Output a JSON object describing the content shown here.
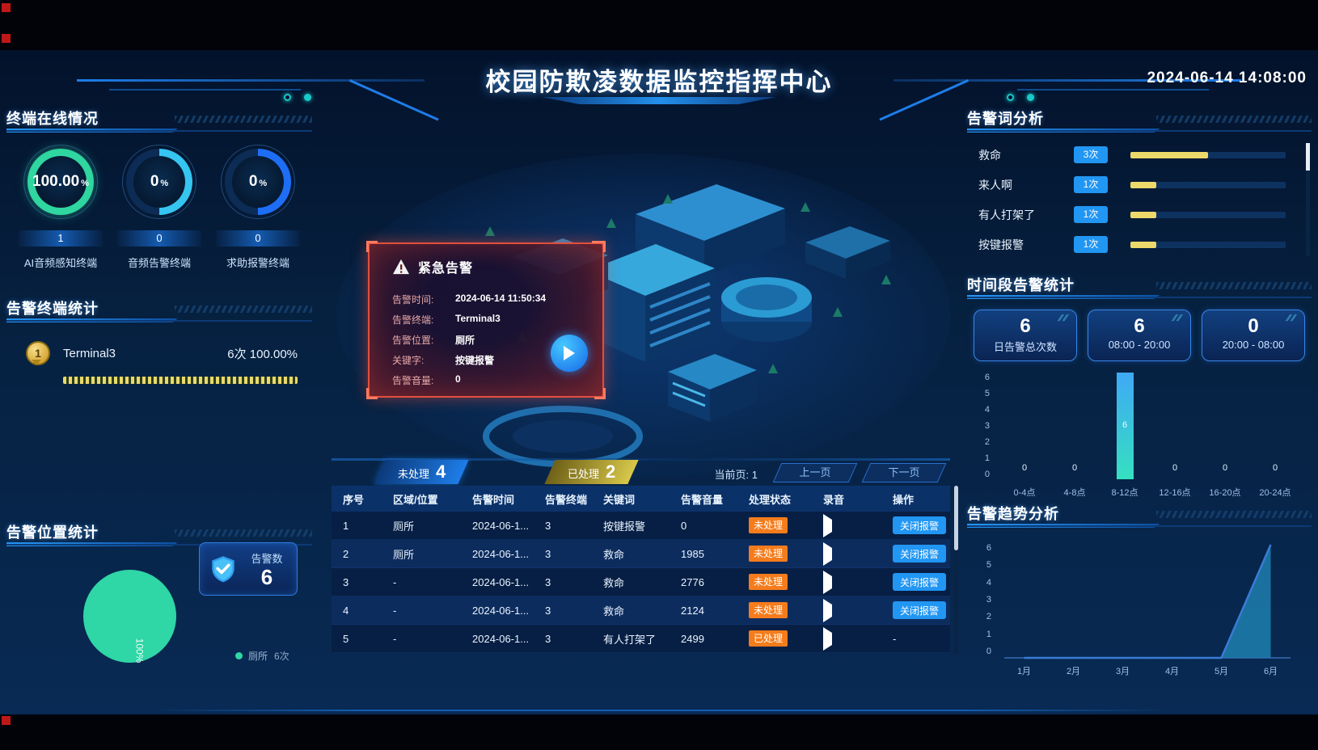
{
  "meta": {
    "title": "校园防欺凌数据监控指挥中心",
    "datetime": "2024-06-14 14:08:00"
  },
  "colors": {
    "accent_blue": "#1e7de8",
    "teal": "#2fd6a6",
    "yellow": "#ecd96a",
    "orange_badge": "#f57c1c",
    "button_blue": "#2196f3",
    "alert_red": "#e0503e"
  },
  "panels": {
    "online": {
      "title": "终端在线情况",
      "gauges": [
        {
          "percent": "100.00",
          "unit": "%",
          "count": "1",
          "label": "AI音频感知终端",
          "color": "#2fd6a0"
        },
        {
          "percent": "0",
          "unit": "%",
          "count": "0",
          "label": "音频告警终端",
          "color": "#35c5f0"
        },
        {
          "percent": "0",
          "unit": "%",
          "count": "0",
          "label": "求助报警终端",
          "color": "#1e6ef5"
        }
      ]
    },
    "terminal_stats": {
      "title": "告警终端统计",
      "items": [
        {
          "rank": "1",
          "name": "Terminal3",
          "count_text": "6次",
          "percent_text": "100.00%"
        }
      ]
    },
    "location_stats": {
      "title": "告警位置统计",
      "pie_label": "100%",
      "card_label": "告警数",
      "card_value": "6",
      "legend": [
        {
          "name": "厕所",
          "count": "6次"
        }
      ],
      "chart": {
        "type": "pie",
        "categories": [
          "厕所"
        ],
        "values": [
          6
        ],
        "percents": [
          100
        ]
      }
    },
    "alert_popup": {
      "title": "紧急告警",
      "rows": [
        {
          "label": "告警时间:",
          "value": "2024-06-14 11:50:34"
        },
        {
          "label": "告警终端:",
          "value": "Terminal3"
        },
        {
          "label": "告警位置:",
          "value": "厕所"
        },
        {
          "label": "关键字:",
          "value": "按键报警"
        },
        {
          "label": "告警音量:",
          "value": "0"
        }
      ]
    },
    "alarm_table": {
      "tabs": [
        {
          "label": "未处理",
          "count": "4"
        },
        {
          "label": "已处理",
          "count": "2"
        }
      ],
      "page_label": "当前页:",
      "page": "1",
      "prev": "上一页",
      "next": "下一页",
      "headers": [
        "序号",
        "区域/位置",
        "告警时间",
        "告警终端",
        "关键词",
        "告警音量",
        "处理状态",
        "录音",
        "操作"
      ],
      "rows": [
        {
          "seq": "1",
          "location": "厕所",
          "time": "2024-06-1...",
          "terminal": "3",
          "keyword": "按键报警",
          "volume": "0",
          "status": "未处理",
          "action": "关闭报警"
        },
        {
          "seq": "2",
          "location": "厕所",
          "time": "2024-06-1...",
          "terminal": "3",
          "keyword": "救命",
          "volume": "1985",
          "status": "未处理",
          "action": "关闭报警"
        },
        {
          "seq": "3",
          "location": "-",
          "time": "2024-06-1...",
          "terminal": "3",
          "keyword": "救命",
          "volume": "2776",
          "status": "未处理",
          "action": "关闭报警"
        },
        {
          "seq": "4",
          "location": "-",
          "time": "2024-06-1...",
          "terminal": "3",
          "keyword": "救命",
          "volume": "2124",
          "status": "未处理",
          "action": "关闭报警"
        },
        {
          "seq": "5",
          "location": "-",
          "time": "2024-06-1...",
          "terminal": "3",
          "keyword": "有人打架了",
          "volume": "2499",
          "status": "已处理",
          "action": "-"
        }
      ]
    },
    "keyword_analysis": {
      "title": "告警词分析",
      "scale_max": 6,
      "items": [
        {
          "label": "救命",
          "count": "3次",
          "value": 3
        },
        {
          "label": "来人啊",
          "count": "1次",
          "value": 1
        },
        {
          "label": "有人打架了",
          "count": "1次",
          "value": 1
        },
        {
          "label": "按键报警",
          "count": "1次",
          "value": 1
        }
      ]
    },
    "time_stats": {
      "title": "时间段告警统计",
      "cards": [
        {
          "value": "6",
          "label": "日告警总次数"
        },
        {
          "value": "6",
          "label": "08:00 - 20:00"
        },
        {
          "value": "0",
          "label": "20:00 - 08:00"
        }
      ],
      "chart": {
        "type": "bar",
        "categories": [
          "0-4点",
          "4-8点",
          "8-12点",
          "12-16点",
          "16-20点",
          "20-24点"
        ],
        "values": [
          0,
          0,
          6,
          0,
          0,
          0
        ],
        "ymax": 6,
        "yticks": [
          "6",
          "5",
          "4",
          "3",
          "2",
          "1",
          "0"
        ]
      }
    },
    "trend": {
      "title": "告警趋势分析",
      "chart": {
        "type": "area",
        "categories": [
          "1月",
          "2月",
          "3月",
          "4月",
          "5月",
          "6月"
        ],
        "values": [
          0,
          0,
          0,
          0,
          0,
          6
        ],
        "ymax": 6,
        "yticks": [
          "6",
          "5",
          "4",
          "3",
          "2",
          "1",
          "0"
        ]
      }
    }
  }
}
